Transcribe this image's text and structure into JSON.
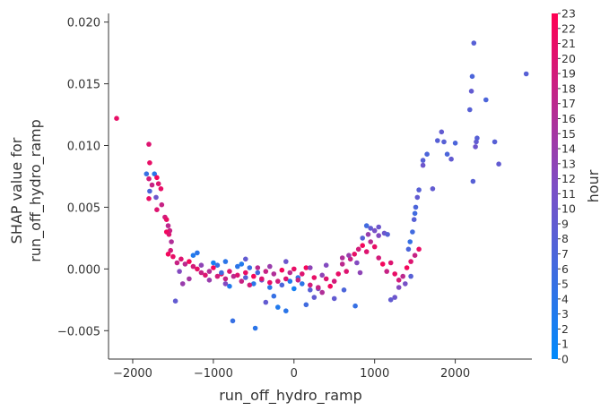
{
  "chart_data": {
    "type": "scatter",
    "title": "",
    "xlabel": "run_off_hydro_ramp",
    "ylabel_lines": [
      "SHAP value for",
      "run_off_hydro_ramp"
    ],
    "xlim": [
      -2300,
      2950
    ],
    "ylim": [
      -0.0073,
      0.0207
    ],
    "xticks": [
      -2000,
      -1000,
      0,
      1000,
      2000
    ],
    "xtick_labels": [
      "−2000",
      "−1000",
      "0",
      "1000",
      "2000"
    ],
    "yticks": [
      -0.005,
      0.0,
      0.005,
      0.01,
      0.015,
      0.02
    ],
    "ytick_labels": [
      "−0.005",
      "0.000",
      "0.005",
      "0.010",
      "0.015",
      "0.020"
    ],
    "colorbar": {
      "label": "hour",
      "min": 0,
      "max": 23,
      "ticks": [
        "0",
        "1",
        "2",
        "3",
        "4",
        "5",
        "6",
        "7",
        "8",
        "9",
        "10",
        "11",
        "12",
        "13",
        "14",
        "15",
        "16",
        "17",
        "18",
        "19",
        "20",
        "21",
        "22",
        "23"
      ],
      "colors": [
        "#008afb",
        "#7d4ec5",
        "#ff0052"
      ]
    },
    "points": [
      [
        -2200,
        0.0122,
        21
      ],
      [
        -1800,
        0.0101,
        20
      ],
      [
        -1790,
        0.0086,
        21
      ],
      [
        -1830,
        0.0077,
        5
      ],
      [
        -1800,
        0.0073,
        19
      ],
      [
        -1760,
        0.0068,
        18
      ],
      [
        -1730,
        0.0077,
        4
      ],
      [
        -1700,
        0.0074,
        22
      ],
      [
        -1680,
        0.0069,
        20
      ],
      [
        -1650,
        0.0065,
        21
      ],
      [
        -1790,
        0.0063,
        7
      ],
      [
        -1710,
        0.0058,
        10
      ],
      [
        -1800,
        0.0057,
        21
      ],
      [
        -1640,
        0.0052,
        18
      ],
      [
        -1700,
        0.0048,
        20
      ],
      [
        -1600,
        0.0042,
        19
      ],
      [
        -1580,
        0.004,
        21
      ],
      [
        -1560,
        0.0035,
        17
      ],
      [
        -1540,
        0.0031,
        18
      ],
      [
        -1520,
        0.0022,
        16
      ],
      [
        -1580,
        0.003,
        22
      ],
      [
        -1550,
        0.0028,
        20
      ],
      [
        -1530,
        0.0015,
        19
      ],
      [
        -1560,
        0.0012,
        22
      ],
      [
        -1500,
        0.001,
        21
      ],
      [
        -1450,
        0.0005,
        18
      ],
      [
        -1400,
        0.0008,
        20
      ],
      [
        -1350,
        0.0004,
        17
      ],
      [
        -1300,
        0.0006,
        22
      ],
      [
        -1250,
        0.0002,
        19
      ],
      [
        -1200,
        0.0,
        21
      ],
      [
        -1150,
        -0.0003,
        18
      ],
      [
        -1100,
        -0.0005,
        20
      ],
      [
        -1050,
        -0.0002,
        16
      ],
      [
        -1000,
        0.0001,
        22
      ],
      [
        -950,
        -0.0006,
        19
      ],
      [
        -900,
        -0.0004,
        21
      ],
      [
        -850,
        -0.0008,
        18
      ],
      [
        -800,
        -0.0002,
        20
      ],
      [
        -750,
        -0.0006,
        17
      ],
      [
        -1420,
        -0.0002,
        12
      ],
      [
        -1380,
        -0.0012,
        14
      ],
      [
        -1470,
        -0.0026,
        9
      ],
      [
        -1250,
        0.0011,
        3
      ],
      [
        -1200,
        0.0013,
        4
      ],
      [
        -1000,
        0.0005,
        2
      ],
      [
        -950,
        0.0003,
        5
      ],
      [
        -900,
        -0.0003,
        6
      ],
      [
        -850,
        0.0006,
        4
      ],
      [
        -800,
        -0.0014,
        3
      ],
      [
        -760,
        -0.0042,
        5
      ],
      [
        -700,
        0.0002,
        4
      ],
      [
        -650,
        0.0004,
        3
      ],
      [
        -600,
        -0.0007,
        8
      ],
      [
        -550,
        0.0001,
        5
      ],
      [
        -500,
        -0.0012,
        4
      ],
      [
        -480,
        -0.0048,
        4
      ],
      [
        -450,
        -0.0003,
        6
      ],
      [
        -400,
        -0.0009,
        10
      ],
      [
        -350,
        -0.0027,
        9
      ],
      [
        -300,
        -0.0015,
        4
      ],
      [
        -250,
        -0.0022,
        5
      ],
      [
        -200,
        -0.0031,
        3
      ],
      [
        -150,
        -0.0013,
        7
      ],
      [
        -100,
        -0.0034,
        4
      ],
      [
        -50,
        -0.001,
        3
      ],
      [
        0,
        -0.0016,
        2
      ],
      [
        50,
        -0.0007,
        5
      ],
      [
        100,
        -0.0012,
        4
      ],
      [
        150,
        -0.0029,
        6
      ],
      [
        200,
        -0.0017,
        8
      ],
      [
        250,
        -0.0023,
        9
      ],
      [
        300,
        -0.0016,
        11
      ],
      [
        350,
        -0.0005,
        13
      ],
      [
        -700,
        -0.0005,
        20
      ],
      [
        -650,
        -0.001,
        18
      ],
      [
        -600,
        -0.0003,
        21
      ],
      [
        -550,
        -0.0013,
        19
      ],
      [
        -500,
        -0.0006,
        22
      ],
      [
        -450,
        0.0001,
        17
      ],
      [
        -400,
        -0.0008,
        20
      ],
      [
        -350,
        -0.0002,
        18
      ],
      [
        -300,
        -0.0011,
        21
      ],
      [
        -250,
        -0.0004,
        16
      ],
      [
        -200,
        -0.001,
        19
      ],
      [
        -150,
        -0.0001,
        22
      ],
      [
        -100,
        -0.0008,
        20
      ],
      [
        -50,
        -0.0003,
        17
      ],
      [
        0,
        0.0,
        21
      ],
      [
        50,
        -0.0009,
        18
      ],
      [
        100,
        -0.0004,
        20
      ],
      [
        150,
        0.0001,
        22
      ],
      [
        200,
        -0.0013,
        19
      ],
      [
        250,
        -0.0007,
        21
      ],
      [
        300,
        -0.0015,
        18
      ],
      [
        350,
        -0.0019,
        16
      ],
      [
        400,
        -0.0008,
        20
      ],
      [
        450,
        -0.0014,
        22
      ],
      [
        500,
        -0.001,
        19
      ],
      [
        550,
        -0.0004,
        21
      ],
      [
        600,
        0.0004,
        17
      ],
      [
        650,
        -0.0002,
        20
      ],
      [
        700,
        0.0008,
        18
      ],
      [
        750,
        0.0012,
        21
      ],
      [
        800,
        0.0016,
        19
      ],
      [
        850,
        0.0019,
        22
      ],
      [
        900,
        0.0014,
        20
      ],
      [
        950,
        0.0022,
        17
      ],
      [
        1000,
        0.0018,
        21
      ],
      [
        1050,
        0.0009,
        19
      ],
      [
        1100,
        0.0004,
        22
      ],
      [
        1150,
        -0.0002,
        18
      ],
      [
        1200,
        0.0005,
        20
      ],
      [
        1250,
        -0.0004,
        21
      ],
      [
        1300,
        -0.0009,
        19
      ],
      [
        1350,
        -0.0006,
        17
      ],
      [
        1400,
        0.0001,
        22
      ],
      [
        1450,
        0.0006,
        20
      ],
      [
        1500,
        0.0011,
        18
      ],
      [
        1550,
        0.0016,
        21
      ],
      [
        900,
        0.0035,
        6
      ],
      [
        950,
        0.0033,
        9
      ],
      [
        1000,
        0.0031,
        11
      ],
      [
        1050,
        0.0034,
        10
      ],
      [
        850,
        0.0025,
        8
      ],
      [
        920,
        0.0028,
        14
      ],
      [
        1050,
        0.0027,
        12
      ],
      [
        1120,
        0.0029,
        10
      ],
      [
        1160,
        0.0028,
        8
      ],
      [
        1200,
        -0.0025,
        9
      ],
      [
        1250,
        -0.0023,
        10
      ],
      [
        1300,
        -0.0015,
        12
      ],
      [
        1380,
        -0.0012,
        11
      ],
      [
        1450,
        -0.0006,
        8
      ],
      [
        1420,
        0.0016,
        7
      ],
      [
        1440,
        0.0022,
        5
      ],
      [
        1470,
        0.003,
        6
      ],
      [
        1490,
        0.004,
        8
      ],
      [
        1510,
        0.005,
        7
      ],
      [
        1530,
        0.0058,
        9
      ],
      [
        1550,
        0.0064,
        8
      ],
      [
        1500,
        0.0045,
        6
      ],
      [
        1600,
        0.0088,
        8
      ],
      [
        1650,
        0.0093,
        7
      ],
      [
        1720,
        0.0065,
        9
      ],
      [
        1780,
        0.0104,
        8
      ],
      [
        1830,
        0.0111,
        9
      ],
      [
        1860,
        0.0103,
        8
      ],
      [
        1900,
        0.0093,
        7
      ],
      [
        1950,
        0.0089,
        9
      ],
      [
        2000,
        0.0102,
        7
      ],
      [
        2180,
        0.0129,
        8
      ],
      [
        2200,
        0.0144,
        9
      ],
      [
        2210,
        0.0156,
        7
      ],
      [
        2230,
        0.0183,
        8
      ],
      [
        2250,
        0.0099,
        10
      ],
      [
        2260,
        0.0103,
        9
      ],
      [
        2270,
        0.0106,
        8
      ],
      [
        2220,
        0.0071,
        8
      ],
      [
        2380,
        0.0137,
        7
      ],
      [
        2490,
        0.0103,
        8
      ],
      [
        2540,
        0.0085,
        9
      ],
      [
        2880,
        0.0158,
        8
      ],
      [
        1600,
        0.0084,
        10
      ],
      [
        -1300,
        -0.0008,
        15
      ],
      [
        -1150,
        0.0003,
        13
      ],
      [
        -1050,
        -0.0009,
        14
      ],
      [
        -850,
        -0.0012,
        12
      ],
      [
        -600,
        0.0008,
        9
      ],
      [
        -300,
        0.0002,
        14
      ],
      [
        -100,
        0.0006,
        10
      ],
      [
        200,
        0.0001,
        13
      ],
      [
        400,
        0.0003,
        12
      ],
      [
        500,
        -0.0024,
        9
      ],
      [
        620,
        -0.0017,
        7
      ],
      [
        760,
        -0.003,
        5
      ],
      [
        600,
        0.0009,
        16
      ],
      [
        680,
        0.0011,
        14
      ],
      [
        780,
        0.0005,
        12
      ],
      [
        820,
        -0.0003,
        13
      ]
    ]
  }
}
